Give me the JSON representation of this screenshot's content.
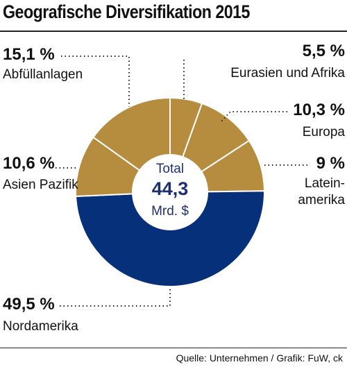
{
  "title": "Geografische Diversifikation 2015",
  "source": "Quelle: Unternehmen / Grafik: FuW, ck",
  "colors": {
    "gold": "#b68c3e",
    "navy": "#06307a",
    "center_text": "#1d2f6f"
  },
  "chart_data": {
    "type": "pie",
    "title": "Geografische Diversifikation 2015",
    "center": {
      "line1": "Total",
      "value": "44,3",
      "unit": "Mrd. $"
    },
    "slices": [
      {
        "label": "Eurasien und Afrika",
        "value": 5.5,
        "display": "5,5 %",
        "color": "#b68c3e"
      },
      {
        "label": "Europa",
        "value": 10.3,
        "display": "10,3 %",
        "color": "#b68c3e"
      },
      {
        "label": "Lateinamerika",
        "label_lines": [
          "Latein-",
          "amerika"
        ],
        "value": 9,
        "display": "9 %",
        "color": "#b68c3e"
      },
      {
        "label": "Nordamerika",
        "value": 49.5,
        "display": "49,5 %",
        "color": "#06307a"
      },
      {
        "label": "Asien Pazifik",
        "value": 10.6,
        "display": "10,6 %",
        "color": "#b68c3e"
      },
      {
        "label": "Abfüllanlagen",
        "value": 15.1,
        "display": "15,1 %",
        "color": "#b68c3e"
      }
    ]
  }
}
